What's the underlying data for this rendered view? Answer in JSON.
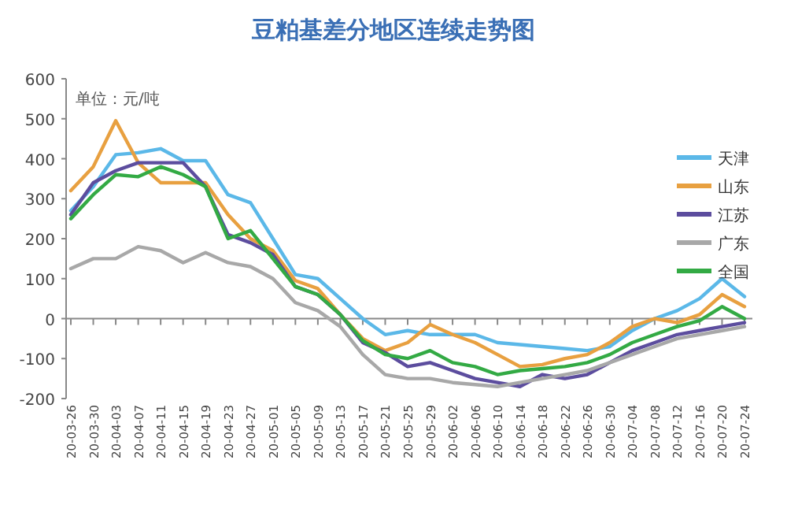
{
  "chart_data": {
    "type": "line",
    "title": "豆粕基差分地区连续走势图",
    "annotations": [
      "单位：元/吨"
    ],
    "categories": [
      "20-03-26",
      "20-03-30",
      "20-04-03",
      "20-04-07",
      "20-04-11",
      "20-04-15",
      "20-04-19",
      "20-04-23",
      "20-04-27",
      "20-05-01",
      "20-05-05",
      "20-05-09",
      "20-05-13",
      "20-05-17",
      "20-05-21",
      "20-05-25",
      "20-05-29",
      "20-06-02",
      "20-06-06",
      "20-06-10",
      "20-06-14",
      "20-06-18",
      "20-06-22",
      "20-06-26",
      "20-06-30",
      "20-07-04",
      "20-07-08",
      "20-07-12",
      "20-07-16",
      "20-07-20",
      "20-07-24"
    ],
    "series": [
      {
        "name": "天津",
        "color": "#5bb8e8",
        "values": [
          270,
          330,
          410,
          415,
          425,
          395,
          395,
          310,
          290,
          200,
          110,
          100,
          50,
          0,
          -40,
          -30,
          -40,
          -40,
          -40,
          -60,
          -65,
          -70,
          -75,
          -80,
          -70,
          -30,
          0,
          20,
          50,
          100,
          55
        ]
      },
      {
        "name": "山东",
        "color": "#e8a040",
        "values": [
          320,
          380,
          495,
          390,
          340,
          340,
          340,
          260,
          200,
          170,
          95,
          75,
          10,
          -50,
          -80,
          -60,
          -15,
          -40,
          -60,
          -90,
          -120,
          -115,
          -100,
          -90,
          -60,
          -20,
          0,
          -10,
          10,
          60,
          30
        ]
      },
      {
        "name": "江苏",
        "color": "#5c4d9e",
        "values": [
          260,
          340,
          370,
          390,
          390,
          390,
          330,
          210,
          190,
          160,
          80,
          60,
          10,
          -60,
          -85,
          -120,
          -110,
          -130,
          -150,
          -160,
          -170,
          -140,
          -150,
          -140,
          -110,
          -80,
          -60,
          -40,
          -30,
          -20,
          -10
        ]
      },
      {
        "name": "广东",
        "color": "#a8a8a8",
        "values": [
          125,
          150,
          150,
          180,
          170,
          140,
          165,
          140,
          130,
          100,
          40,
          20,
          -20,
          -90,
          -140,
          -150,
          -150,
          -160,
          -165,
          -170,
          -160,
          -150,
          -140,
          -130,
          -110,
          -90,
          -70,
          -50,
          -40,
          -30,
          -20
        ]
      },
      {
        "name": "全国",
        "color": "#33aa44",
        "values": [
          250,
          310,
          360,
          355,
          380,
          360,
          330,
          200,
          220,
          150,
          80,
          60,
          10,
          -55,
          -90,
          -100,
          -80,
          -110,
          -120,
          -140,
          -130,
          -125,
          -120,
          -110,
          -90,
          -60,
          -40,
          -20,
          -5,
          30,
          0
        ]
      }
    ],
    "ylim": [
      -200,
      600
    ],
    "yticks": [
      -200,
      -100,
      0,
      100,
      200,
      300,
      400,
      500,
      600
    ],
    "legend": "right"
  }
}
